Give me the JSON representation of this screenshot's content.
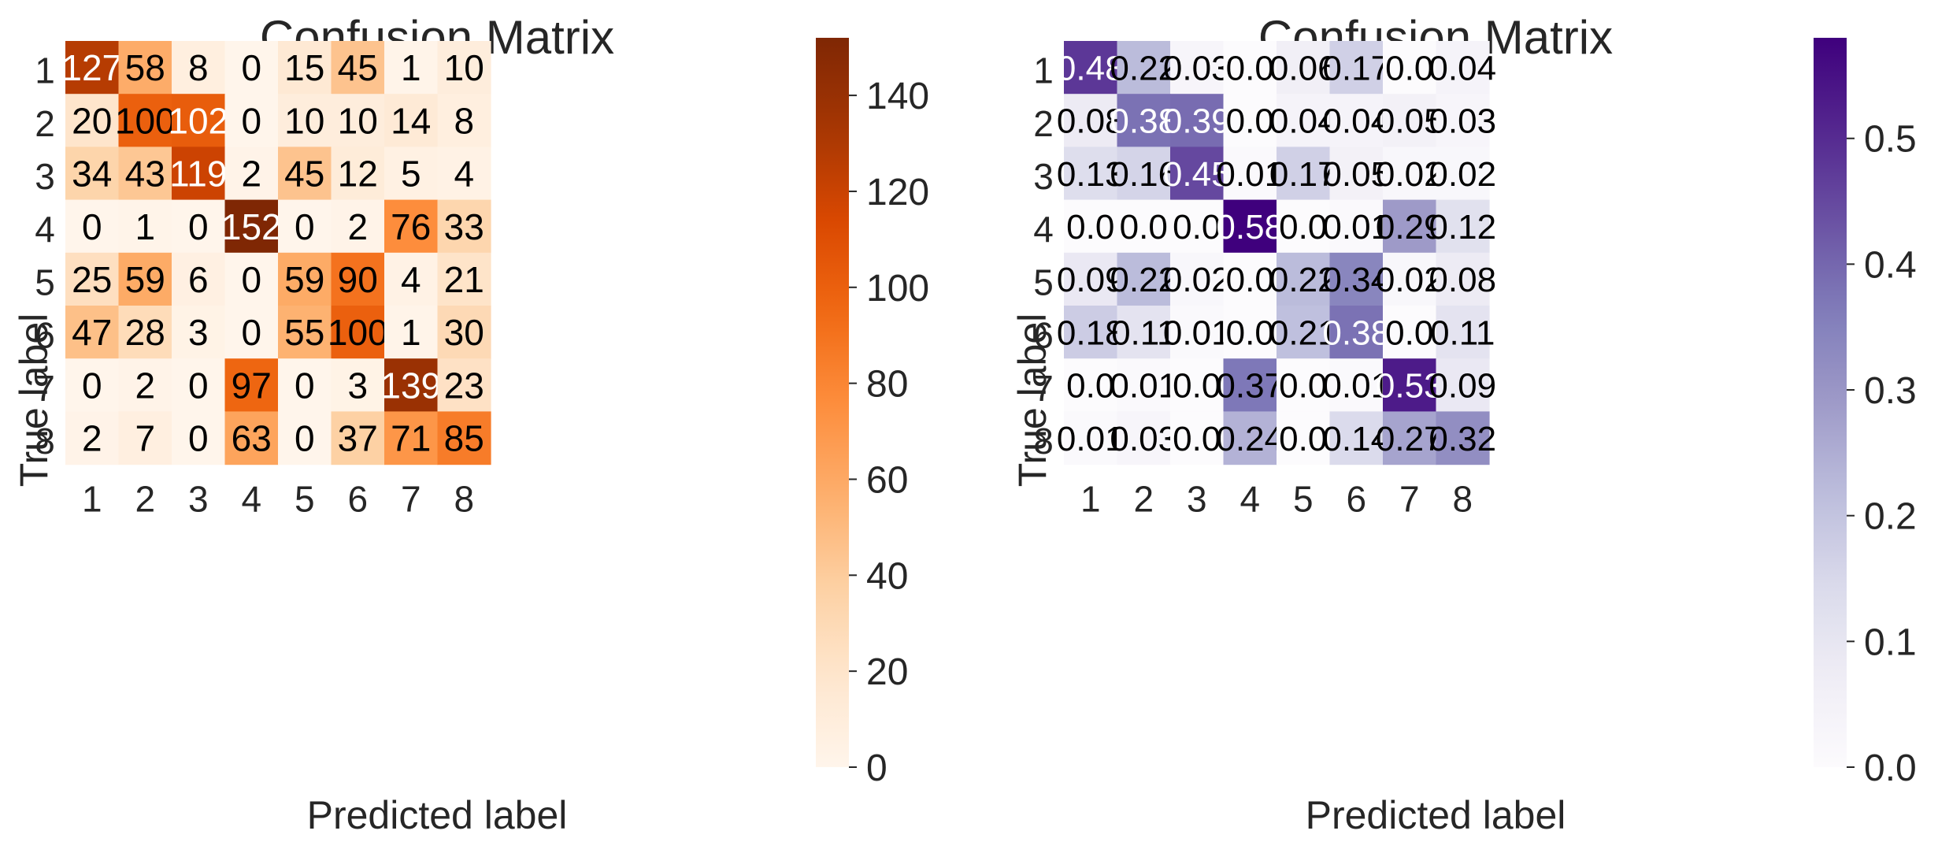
{
  "chart_data": [
    {
      "type": "heatmap",
      "title": "Confusion Matrix",
      "xlabel": "Predicted label",
      "ylabel": "True label",
      "x_categories": [
        "1",
        "2",
        "3",
        "4",
        "5",
        "6",
        "7",
        "8"
      ],
      "y_categories": [
        "1",
        "2",
        "3",
        "4",
        "5",
        "6",
        "7",
        "8"
      ],
      "colormap": "Oranges",
      "colorbar": {
        "range": [
          0,
          152
        ],
        "ticks": [
          "0",
          "20",
          "40",
          "60",
          "80",
          "100",
          "120",
          "140"
        ]
      },
      "values": [
        [
          127,
          58,
          8,
          0,
          15,
          45,
          1,
          10
        ],
        [
          20,
          100,
          102,
          0,
          10,
          10,
          14,
          8
        ],
        [
          34,
          43,
          119,
          2,
          45,
          12,
          5,
          4
        ],
        [
          0,
          1,
          0,
          152,
          0,
          2,
          76,
          33
        ],
        [
          25,
          59,
          6,
          0,
          59,
          90,
          4,
          21
        ],
        [
          47,
          28,
          3,
          0,
          55,
          100,
          1,
          30
        ],
        [
          0,
          2,
          0,
          97,
          0,
          3,
          139,
          23
        ],
        [
          2,
          7,
          0,
          63,
          0,
          37,
          71,
          85
        ]
      ],
      "labels": [
        [
          "127",
          "58",
          "8",
          "0",
          "15",
          "45",
          "1",
          "10"
        ],
        [
          "20",
          "100",
          "102",
          "0",
          "10",
          "10",
          "14",
          "8"
        ],
        [
          "34",
          "43",
          "119",
          "2",
          "45",
          "12",
          "5",
          "4"
        ],
        [
          "0",
          "1",
          "0",
          "152",
          "0",
          "2",
          "76",
          "33"
        ],
        [
          "25",
          "59",
          "6",
          "0",
          "59",
          "90",
          "4",
          "21"
        ],
        [
          "47",
          "28",
          "3",
          "0",
          "55",
          "100",
          "1",
          "30"
        ],
        [
          "0",
          "2",
          "0",
          "97",
          "0",
          "3",
          "139",
          "23"
        ],
        [
          "2",
          "7",
          "0",
          "63",
          "0",
          "37",
          "71",
          "85"
        ]
      ]
    },
    {
      "type": "heatmap",
      "title": "Confusion Matrix",
      "xlabel": "Predicted label",
      "ylabel": "True label",
      "x_categories": [
        "1",
        "2",
        "3",
        "4",
        "5",
        "6",
        "7",
        "8"
      ],
      "y_categories": [
        "1",
        "2",
        "3",
        "4",
        "5",
        "6",
        "7",
        "8"
      ],
      "colormap": "Purples",
      "colorbar": {
        "range": [
          0,
          0.58
        ],
        "ticks": [
          "0.0",
          "0.1",
          "0.2",
          "0.3",
          "0.4",
          "0.5"
        ]
      },
      "values": [
        [
          0.48,
          0.22,
          0.03,
          0.0,
          0.06,
          0.17,
          0.0,
          0.04
        ],
        [
          0.08,
          0.38,
          0.39,
          0.0,
          0.04,
          0.04,
          0.05,
          0.03
        ],
        [
          0.13,
          0.16,
          0.45,
          0.01,
          0.17,
          0.05,
          0.02,
          0.02
        ],
        [
          0.0,
          0.0,
          0.0,
          0.58,
          0.0,
          0.01,
          0.29,
          0.12
        ],
        [
          0.09,
          0.22,
          0.02,
          0.0,
          0.22,
          0.34,
          0.02,
          0.08
        ],
        [
          0.18,
          0.11,
          0.01,
          0.0,
          0.21,
          0.38,
          0.0,
          0.11
        ],
        [
          0.0,
          0.01,
          0.0,
          0.37,
          0.0,
          0.01,
          0.53,
          0.09
        ],
        [
          0.01,
          0.03,
          0.0,
          0.24,
          0.0,
          0.14,
          0.27,
          0.32
        ]
      ],
      "labels": [
        [
          "0.48",
          "0.22",
          "0.03",
          "0.0",
          "0.06",
          "0.17",
          "0.0",
          "0.04"
        ],
        [
          "0.08",
          "0.38",
          "0.39",
          "0.0",
          "0.04",
          "0.04",
          "0.05",
          "0.03"
        ],
        [
          "0.13",
          "0.16",
          "0.45",
          "0.01",
          "0.17",
          "0.05",
          "0.02",
          "0.02"
        ],
        [
          "0.0",
          "0.0",
          "0.0",
          "0.58",
          "0.0",
          "0.01",
          "0.29",
          "0.12"
        ],
        [
          "0.09",
          "0.22",
          "0.02",
          "0.0",
          "0.22",
          "0.34",
          "0.02",
          "0.08"
        ],
        [
          "0.18",
          "0.11",
          "0.01",
          "0.0",
          "0.21",
          "0.38",
          "0.0",
          "0.11"
        ],
        [
          "0.0",
          "0.01",
          "0.0",
          "0.37",
          "0.0",
          "0.01",
          "0.53",
          "0.09"
        ],
        [
          "0.01",
          "0.03",
          "0.0",
          "0.24",
          "0.0",
          "0.14",
          "0.27",
          "0.32"
        ]
      ]
    }
  ]
}
